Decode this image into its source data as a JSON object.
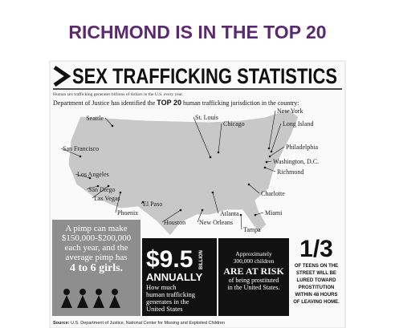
{
  "title": "RICHMOND IS IN THE TOP 20",
  "infographic": {
    "heading": "SEX TRAFFICKING STATISTICS",
    "subheading": "Human sex trafficking generates billions of dollars in the U.S. every year.",
    "intro": {
      "before": "Department of Justice has identified the",
      "bold": "TOP 20",
      "after": "human trafficking jurisdiction in the country:"
    },
    "cities": [
      "Seattle",
      "St. Louis",
      "Chicago",
      "New York",
      "Long Island",
      "San Francisco",
      "Philadelphia",
      "Washington, D.C.",
      "Richmond",
      "Los Angeles",
      "San Diego",
      "Las Vegas",
      "El Paso",
      "Phoenix",
      "Charlotte",
      "Houston",
      "New Orleans",
      "Atlanta",
      "Miami",
      "Tampa"
    ],
    "panels": {
      "pimp": [
        "A pimp can make",
        "$150,000-$200,000",
        "each year, and the",
        "average pimp has",
        "4 to 6 girls."
      ],
      "money": {
        "amount": "$9.5",
        "unit": "BILLION",
        "period": "ANNUALLY",
        "lines": [
          "How much",
          "human trafficking",
          "generates in the",
          "United States"
        ]
      },
      "children": [
        "Approximately",
        "300,000 children",
        "ARE AT RISK",
        "of being prostituted",
        "in the United States."
      ],
      "teens": {
        "fraction": "1/3",
        "lines": [
          "OF TEENS ON THE",
          "STREET WILL BE",
          "LURED TOWARD",
          "PROSTITUTION",
          "WITHIN 48 HOURS",
          "OF LEAVING HOME."
        ]
      }
    },
    "source": {
      "label": "Source:",
      "text": "U.S. Department of Justice, National Center for Missing and Exploited Children"
    }
  }
}
